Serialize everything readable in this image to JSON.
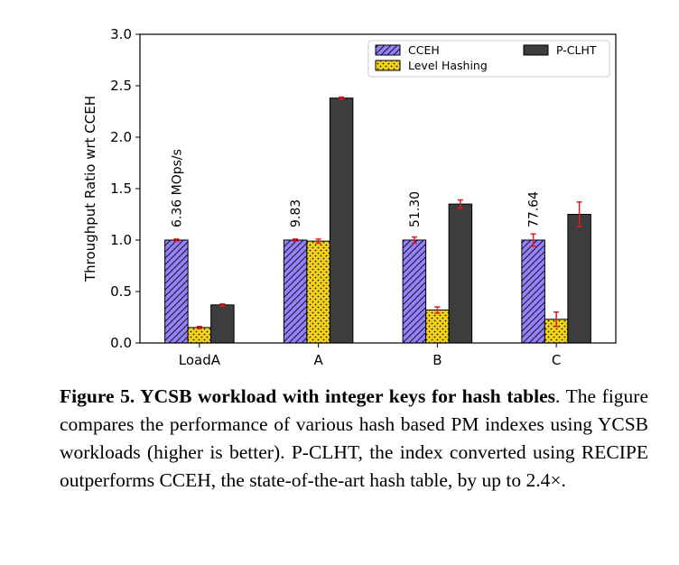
{
  "chart_data": {
    "type": "bar",
    "categories": [
      "LoadA",
      "A",
      "B",
      "C"
    ],
    "series": [
      {
        "name": "CCEH",
        "values": [
          1.0,
          1.0,
          1.0,
          1.0
        ],
        "errors": [
          0.01,
          0.01,
          0.03,
          0.06
        ],
        "color": "#9381ff",
        "hatch": "diagonal"
      },
      {
        "name": "Level Hashing",
        "values": [
          0.15,
          0.99,
          0.32,
          0.23
        ],
        "errors": [
          0.01,
          0.02,
          0.03,
          0.07
        ],
        "color": "#f2d21a",
        "hatch": "dots"
      },
      {
        "name": "P-CLHT",
        "values": [
          0.37,
          2.38,
          1.35,
          1.25
        ],
        "errors": [
          0.01,
          0.01,
          0.04,
          0.12
        ],
        "color": "#3d3d3d",
        "hatch": "none"
      }
    ],
    "annotations": [
      "6.36 MOps/s",
      "9.83",
      "51.30",
      "77.64"
    ],
    "title": "",
    "xlabel": "",
    "ylabel": "Throughput Ratio wrt CCEH",
    "ylim": [
      0,
      3.0
    ],
    "yticks": [
      "0.0",
      "0.5",
      "1.0",
      "1.5",
      "2.0",
      "2.5",
      "3.0"
    ],
    "grid": false,
    "legend_position": "top-right",
    "error_bar_color": "#e41a1c"
  },
  "caption": {
    "bold": "Figure 5. YCSB workload with integer keys for hash tables",
    "rest": ". The figure compares the performance of various hash based PM indexes using YCSB workloads (higher is better). P-CLHT, the index converted using RECIPE outperforms CCEH, the state-of-the-art hash table, by up to 2.4×."
  }
}
